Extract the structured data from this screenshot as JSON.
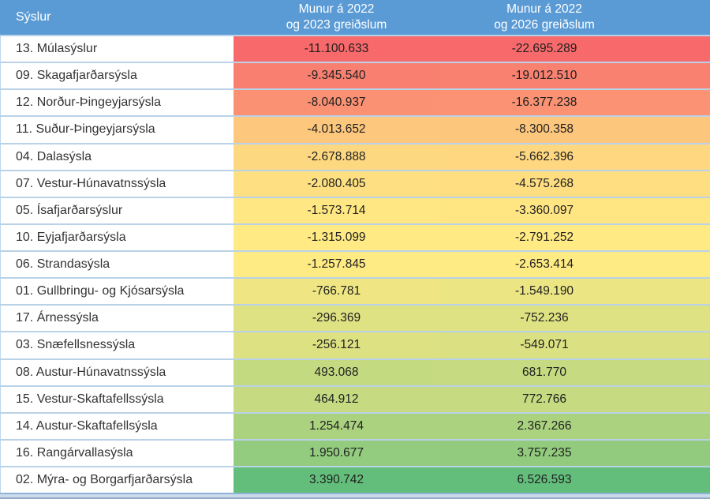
{
  "table": {
    "header": {
      "name_label": "Sýslur",
      "col1_line1": "Munur á 2022",
      "col1_line2": "og 2023 greiðslum",
      "col2_line1": "Munur á 2022",
      "col2_line2": "og 2026 greiðslum"
    },
    "rows": [
      {
        "name": "13. Múlasýslur",
        "v1": "-11.100.633",
        "v2": "-22.695.289",
        "c1": "#F8696B",
        "c2": "#F8696B"
      },
      {
        "name": "09. Skagafjarðarsýsla",
        "v1": "-9.345.540",
        "v2": "-19.012.510",
        "c1": "#F98070",
        "c2": "#F98170"
      },
      {
        "name": "12. Norður-Þingeyjarsýsla",
        "v1": "-8.040.937",
        "v2": "-16.377.238",
        "c1": "#FA9173",
        "c2": "#FA9273"
      },
      {
        "name": "11. Suður-Þingeyjarsýsla",
        "v1": "-4.013.652",
        "v2": "-8.300.358",
        "c1": "#FDC77D",
        "c2": "#FDC67D"
      },
      {
        "name": "04. Dalasýsla",
        "v1": "-2.678.888",
        "v2": "-5.662.396",
        "c1": "#FED880",
        "c2": "#FED780"
      },
      {
        "name": "07. Vestur-Húnavatnssýsla",
        "v1": "-2.080.405",
        "v2": "-4.575.268",
        "c1": "#FEE082",
        "c2": "#FEDE81"
      },
      {
        "name": "05. Ísafjarðarsýslur",
        "v1": "-1.573.714",
        "v2": "-3.360.097",
        "c1": "#FFE783",
        "c2": "#FFE683"
      },
      {
        "name": "10. Eyjafjarðarsýsla",
        "v1": "-1.315.099",
        "v2": "-2.791.252",
        "c1": "#FFEA84",
        "c2": "#FFEA84"
      },
      {
        "name": "06. Strandasýsla",
        "v1": "-1.257.845",
        "v2": "-2.653.414",
        "c1": "#FFEB84",
        "c2": "#FFEB84"
      },
      {
        "name": "01. Gullbringu- og Kjósarsýsla",
        "v1": "-766.781",
        "v2": "-1.549.190",
        "c1": "#EFE683",
        "c2": "#ECE583"
      },
      {
        "name": "17. Árnessýsla",
        "v1": "-296.369",
        "v2": "-752.236",
        "c1": "#DFE282",
        "c2": "#DFE282"
      },
      {
        "name": "03. Snæfellsnessýsla",
        "v1": "-256.121",
        "v2": "-549.071",
        "c1": "#DDE182",
        "c2": "#DBE082"
      },
      {
        "name": "08. Austur-Húnavatnssýsla",
        "v1": "493.068",
        "v2": "681.770",
        "c1": "#C4DA81",
        "c2": "#C6DA81"
      },
      {
        "name": "15. Vestur-Skaftafellssýsla",
        "v1": "464.912",
        "v2": "772.766",
        "c1": "#C5DA81",
        "c2": "#C5DA81"
      },
      {
        "name": "14. Austur-Skaftafellsýsla",
        "v1": "1.254.474",
        "v2": "2.367.266",
        "c1": "#ABD37F",
        "c2": "#AAD27F"
      },
      {
        "name": "16. Rangárvallasýsla",
        "v1": "1.950.677",
        "v2": "3.757.235",
        "c1": "#93CC7E",
        "c2": "#92CB7D"
      },
      {
        "name": "02. Mýra- og Borgarfjarðarsýsla",
        "v1": "3.390.742",
        "v2": "6.526.593",
        "c1": "#63BE7B",
        "c2": "#63BE7B"
      }
    ]
  },
  "colors": {
    "header_bg": "#5B9BD5",
    "header_text": "#FFFFFF",
    "row_separator": "#B9D2E8",
    "scale_min": "#F8696B",
    "scale_mid": "#FFEB84",
    "scale_max": "#63BE7B"
  },
  "chart_data": {
    "type": "table",
    "title": "",
    "columns": [
      "Sýslur",
      "Munur á 2022 og 2023 greiðslum",
      "Munur á 2022 og 2026 greiðslum"
    ],
    "rows": [
      [
        "13. Múlasýslur",
        -11100633,
        -22695289
      ],
      [
        "09. Skagafjarðarsýsla",
        -9345540,
        -19012510
      ],
      [
        "12. Norður-Þingeyjarsýsla",
        -8040937,
        -16377238
      ],
      [
        "11. Suður-Þingeyjarsýsla",
        -4013652,
        -8300358
      ],
      [
        "04. Dalasýsla",
        -2678888,
        -5662396
      ],
      [
        "07. Vestur-Húnavatnssýsla",
        -2080405,
        -4575268
      ],
      [
        "05. Ísafjarðarsýslur",
        -1573714,
        -3360097
      ],
      [
        "10. Eyjafjarðarsýsla",
        -1315099,
        -2791252
      ],
      [
        "06. Strandasýsla",
        -1257845,
        -2653414
      ],
      [
        "01. Gullbringu- og Kjósarsýsla",
        -766781,
        -1549190
      ],
      [
        "17. Árnessýsla",
        -296369,
        -752236
      ],
      [
        "03. Snæfellsnessýsla",
        -256121,
        -549071
      ],
      [
        "08. Austur-Húnavatnssýsla",
        493068,
        681770
      ],
      [
        "15. Vestur-Skaftafellssýsla",
        464912,
        772766
      ],
      [
        "14. Austur-Skaftafellsýsla",
        1254474,
        2367266
      ],
      [
        "16. Rangárvallasýsla",
        1950677,
        3757235
      ],
      [
        "02. Mýra- og Borgarfjarðarsýsla",
        3390742,
        6526593
      ]
    ],
    "layout": {
      "number_format": "is-IS thousands separated by dots",
      "conditional_formatting": "3-color scale per column: min #F8696B (red), median #FFEB84 (yellow), max #63BE7B (green)"
    }
  }
}
